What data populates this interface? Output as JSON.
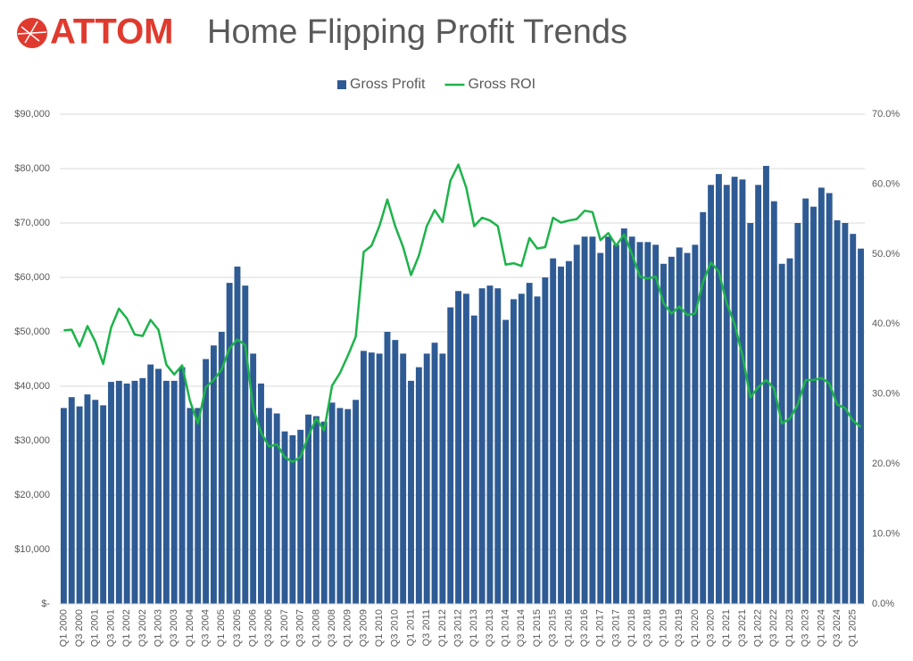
{
  "chart_data": {
    "type": "bar_line",
    "logo": "ATTOM",
    "title": "Home Flipping  Profit Trends",
    "categories": [
      "Q1 2000",
      null,
      "Q3 2000",
      null,
      "Q1 2001",
      null,
      "Q3 2001",
      null,
      "Q1 2002",
      null,
      "Q3 2002",
      null,
      "Q1 2003",
      null,
      "Q3 2003",
      null,
      "Q1 2004",
      null,
      "Q3 2004",
      null,
      "Q1 2005",
      null,
      "Q3 2005",
      null,
      "Q1 2006",
      null,
      "Q3 2006",
      null,
      "Q1 2007",
      null,
      "Q3 2007",
      null,
      "Q1 2008",
      null,
      "Q3 2008",
      null,
      "Q1 2009",
      null,
      "Q3 2009",
      null,
      "Q1 2010",
      null,
      "Q3 2010",
      null,
      "Q1 2011",
      null,
      "Q3 2011",
      null,
      "Q1 2012",
      null,
      "Q3 2012",
      null,
      "Q1 2013",
      null,
      "Q3 2013",
      null,
      "Q1 2014",
      null,
      "Q3 2014",
      null,
      "Q1 2015",
      null,
      "Q3 2015",
      null,
      "Q1 2016",
      null,
      "Q3 2016",
      null,
      "Q1 2017",
      null,
      "Q3 2017",
      null,
      "Q1 2018",
      null,
      "Q3 2018",
      null,
      "Q1 2019",
      null,
      "Q3 2019",
      null,
      "Q1 2020",
      null,
      "Q3 2020",
      null,
      "Q1 2021",
      null,
      "Q3 2021",
      null,
      "Q1 2022",
      null,
      "Q3 2022",
      null,
      "Q1 2023",
      null,
      "Q3 2023",
      null,
      "Q1 2024",
      null,
      "Q3 2024",
      null,
      "Q1 2025",
      null
    ],
    "series": [
      {
        "name": "Gross Profit",
        "type": "bar",
        "color": "#2f5b94",
        "values": [
          36000,
          38000,
          36300,
          38500,
          37500,
          36500,
          40800,
          41000,
          40500,
          41000,
          41500,
          44000,
          43200,
          41000,
          41000,
          43500,
          36000,
          36000,
          45000,
          47500,
          50000,
          59000,
          62000,
          58500,
          46000,
          40500,
          36000,
          35000,
          31700,
          31000,
          32000,
          34800,
          34500,
          33500,
          37000,
          36000,
          35800,
          37500,
          46500,
          46200,
          46000,
          50000,
          48500,
          46000,
          41000,
          43500,
          46000,
          48000,
          46000,
          54500,
          57500,
          57000,
          53000,
          58000,
          58500,
          58000,
          52200,
          56000,
          57000,
          59000,
          56500,
          60000,
          63500,
          62000,
          63000,
          66000,
          67500,
          67500,
          64500,
          67500,
          66000,
          69000,
          67500,
          66500,
          66500,
          66000,
          62500,
          63800,
          65500,
          64500,
          66000,
          72000,
          77000,
          79000,
          77000,
          78500,
          78000,
          70000,
          77000,
          80500,
          74000,
          62500,
          63500,
          70000,
          74500,
          73000,
          76500,
          75500,
          70500,
          70000,
          68000,
          65300
        ]
      },
      {
        "name": "Gross ROI",
        "type": "line",
        "axis": "y2",
        "color": "#1db34a",
        "values": [
          39.1,
          39.2,
          36.8,
          39.7,
          37.5,
          34.3,
          39.5,
          42.2,
          40.8,
          38.5,
          38.3,
          40.6,
          39.2,
          34.2,
          32.8,
          34.1,
          29.0,
          25.8,
          31.0,
          32.0,
          33.5,
          36.5,
          37.8,
          37.0,
          28.0,
          24.5,
          22.5,
          22.8,
          21.0,
          20.3,
          21.0,
          24.0,
          26.5,
          24.8,
          31.2,
          33.0,
          35.5,
          38.2,
          50.3,
          51.2,
          54.0,
          57.8,
          54.0,
          51.0,
          47.0,
          49.8,
          54.0,
          56.3,
          54.6,
          60.5,
          62.8,
          59.5,
          54.0,
          55.2,
          54.8,
          54.0,
          48.5,
          48.7,
          48.3,
          52.3,
          50.8,
          51.0,
          55.2,
          54.5,
          54.8,
          55.0,
          56.2,
          56.0,
          52.0,
          53.0,
          51.2,
          52.8,
          50.0,
          46.8,
          46.5,
          46.8,
          43.0,
          41.5,
          42.5,
          41.3,
          41.5,
          46.0,
          48.8,
          47.5,
          43.0,
          40.0,
          35.5,
          29.5,
          31.0,
          32.0,
          30.8,
          25.8,
          26.5,
          28.5,
          32.0,
          32.0,
          32.3,
          31.5,
          28.5,
          28.0,
          26.2,
          25.3
        ]
      }
    ],
    "ylim": [
      0,
      90000
    ],
    "yticks": [
      {
        "value": 0,
        "label": "$-"
      },
      {
        "value": 10000,
        "label": "$10,000"
      },
      {
        "value": 20000,
        "label": "$20,000"
      },
      {
        "value": 30000,
        "label": "$30,000"
      },
      {
        "value": 40000,
        "label": "$40,000"
      },
      {
        "value": 50000,
        "label": "$50,000"
      },
      {
        "value": 60000,
        "label": "$60,000"
      },
      {
        "value": 70000,
        "label": "$70,000"
      },
      {
        "value": 80000,
        "label": "$80,000"
      },
      {
        "value": 90000,
        "label": "$90,000"
      }
    ],
    "y2lim": [
      0,
      70
    ],
    "y2ticks": [
      {
        "value": 0,
        "label": "0.0%"
      },
      {
        "value": 10,
        "label": "10.0%"
      },
      {
        "value": 20,
        "label": "20.0%"
      },
      {
        "value": 30,
        "label": "30.0%"
      },
      {
        "value": 40,
        "label": "40.0%"
      },
      {
        "value": 50,
        "label": "50.0%"
      },
      {
        "value": 60,
        "label": "60.0%"
      },
      {
        "value": 70,
        "label": "70.0%"
      }
    ],
    "grid": true,
    "legend": "top"
  }
}
